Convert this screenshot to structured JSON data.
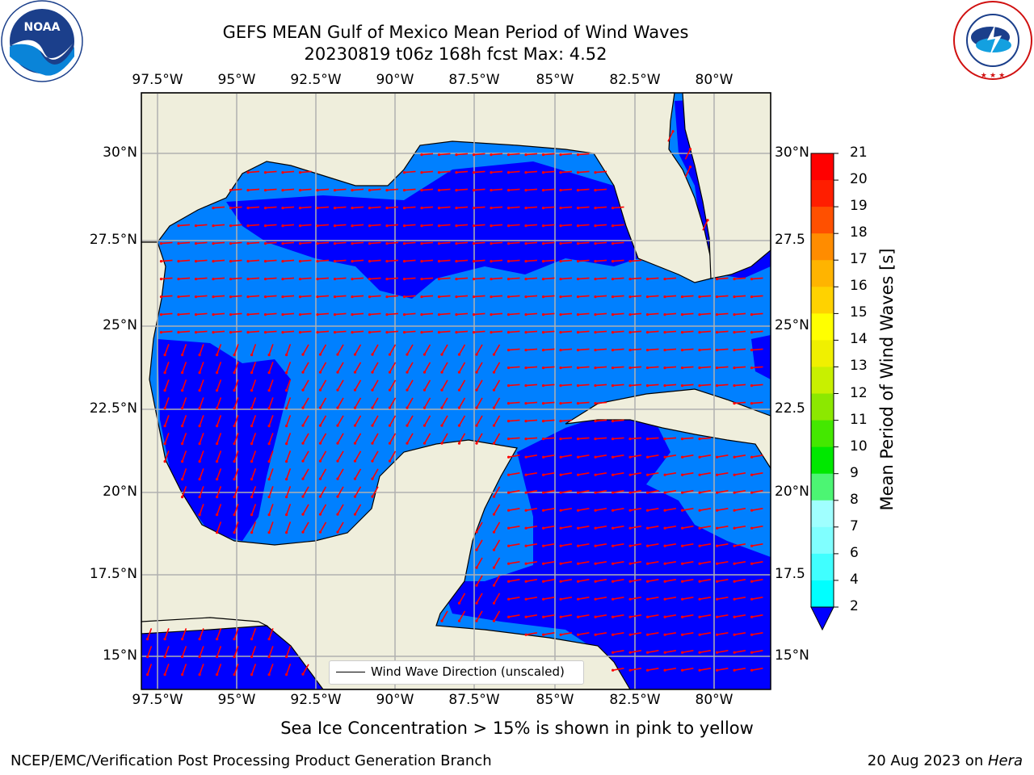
{
  "header": {
    "title_line1": "GEFS MEAN Gulf of Mexico Mean Period of Wind Waves",
    "title_line2": "20230819 t06z 168h fcst   Max: 4.52"
  },
  "logos": {
    "left": {
      "name": "NOAA",
      "ring_text": "NATIONAL OCEANIC AND ATMOSPHERIC ADMINISTRATION · U.S. DEPARTMENT OF COMMERCE"
    },
    "right": {
      "ring_text": "NATIONAL WEATHER SERVICE"
    }
  },
  "map": {
    "lon_ticks": [
      "97.5°W",
      "95°W",
      "92.5°W",
      "90°W",
      "87.5°W",
      "85°W",
      "82.5°W",
      "80°W"
    ],
    "lat_ticks": [
      "30°N",
      "27.5°N",
      "25°N",
      "22.5°N",
      "20°N",
      "17.5°N",
      "15°N"
    ],
    "lat_ticks_right": [
      "30°N",
      "27.5",
      "25°N",
      "22.5",
      "20°N",
      "17.5",
      "15°N"
    ],
    "legend_label": "Wind Wave Direction (unscaled)",
    "colors": {
      "land": "#efeedc",
      "coast": "#000000",
      "shallow": "#0080ff",
      "deep": "#0000ff",
      "arrow": "#ff0000",
      "grid": "#b0b0b0"
    }
  },
  "colorbar": {
    "label": "Mean Period of Wind Waves [s]",
    "levels": [
      "2",
      "4",
      "6",
      "7",
      "8",
      "9",
      "10",
      "11",
      "12",
      "13",
      "14",
      "15",
      "16",
      "17",
      "18",
      "19",
      "20",
      "21"
    ],
    "colors": [
      "#0080ff",
      "#00e5ff",
      "#00ffff",
      "#40ffff",
      "#80ffff",
      "#a0ffff",
      "#4cf573",
      "#00e800",
      "#44e800",
      "#8ce800",
      "#c8f000",
      "#f0f000",
      "#ffff00",
      "#ffd200",
      "#ffb400",
      "#ff8c00",
      "#ff5000",
      "#ff1e00",
      "#ff0000"
    ]
  },
  "footer": {
    "note": "Sea Ice Concentration > 15% is shown in pink to yellow",
    "credit": "NCEP/EMC/Verification Post Processing Product Generation Branch",
    "date": "20 Aug 2023 on ",
    "host": "Hera"
  }
}
